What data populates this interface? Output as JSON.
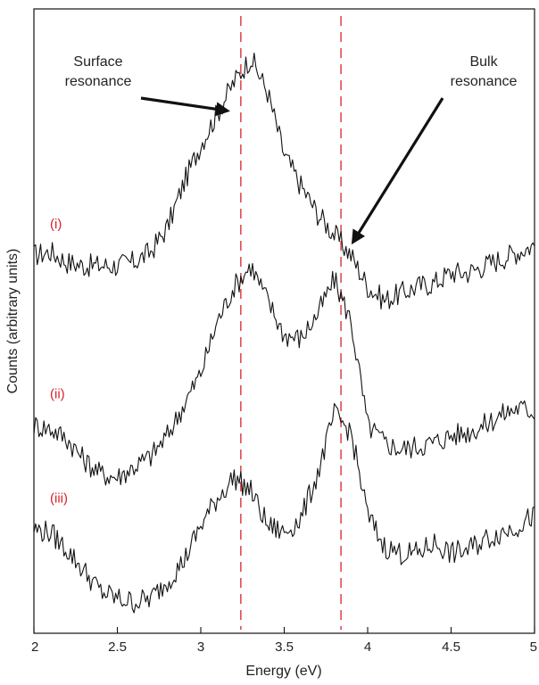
{
  "chart_data": {
    "type": "line",
    "title": "",
    "xlabel": "Energy (eV)",
    "ylabel": "Counts (arbitrary units)",
    "xlim": [
      2,
      5
    ],
    "x_ticks": [
      "2",
      "2.5",
      "3",
      "3.5",
      "4",
      "4.5",
      "5"
    ],
    "y_ticks_shown": false,
    "grid": false,
    "legend": "none",
    "line_color": "#111111",
    "marker_color": "#d6222a",
    "reference_lines": [
      {
        "x": 3.24,
        "style": "dashed",
        "color": "#d6222a"
      },
      {
        "x": 3.84,
        "style": "dashed",
        "color": "#d6222a"
      }
    ],
    "annotations": [
      {
        "lines": [
          "Surface",
          "resonance"
        ],
        "points_to_x": 3.17,
        "points_to": "trace (i)"
      },
      {
        "lines": [
          "Bulk",
          "resonance"
        ],
        "points_to_x": 3.88,
        "points_to": "trace (i)"
      }
    ],
    "series": [
      {
        "name": "(i)",
        "x": [
          2.0,
          2.1,
          2.2,
          2.3,
          2.4,
          2.5,
          2.6,
          2.7,
          2.8,
          2.9,
          3.0,
          3.1,
          3.2,
          3.3,
          3.4,
          3.5,
          3.6,
          3.7,
          3.8,
          3.9,
          4.0,
          4.1,
          4.2,
          4.3,
          4.4,
          4.5,
          4.6,
          4.7,
          4.8,
          4.9,
          5.0
        ],
        "values": [
          5.45,
          5.5,
          5.35,
          5.3,
          5.3,
          5.3,
          5.35,
          5.5,
          5.85,
          6.5,
          7.05,
          7.5,
          7.95,
          8.3,
          7.8,
          6.9,
          6.45,
          6.05,
          5.75,
          5.45,
          5.0,
          4.8,
          4.9,
          5.0,
          5.05,
          5.2,
          5.2,
          5.3,
          5.4,
          5.5,
          5.6
        ]
      },
      {
        "name": "(ii)",
        "x": [
          2.0,
          2.1,
          2.2,
          2.3,
          2.4,
          2.5,
          2.6,
          2.7,
          2.8,
          2.9,
          3.0,
          3.1,
          3.2,
          3.3,
          3.4,
          3.5,
          3.6,
          3.7,
          3.8,
          3.9,
          4.0,
          4.1,
          4.2,
          4.3,
          4.4,
          4.5,
          4.6,
          4.7,
          4.8,
          4.9,
          5.0
        ],
        "values": [
          3.0,
          2.95,
          2.8,
          2.5,
          2.3,
          2.25,
          2.4,
          2.55,
          2.85,
          3.3,
          3.75,
          4.5,
          5.0,
          5.3,
          4.8,
          4.3,
          4.25,
          4.6,
          5.1,
          4.5,
          3.0,
          2.75,
          2.65,
          2.7,
          2.75,
          2.85,
          2.9,
          3.0,
          3.15,
          3.25,
          3.2
        ]
      },
      {
        "name": "(iii)",
        "x": [
          2.0,
          2.1,
          2.2,
          2.3,
          2.4,
          2.5,
          2.6,
          2.7,
          2.8,
          2.9,
          3.0,
          3.1,
          3.2,
          3.3,
          3.4,
          3.5,
          3.6,
          3.7,
          3.8,
          3.9,
          4.0,
          4.1,
          4.2,
          4.3,
          4.4,
          4.5,
          4.6,
          4.7,
          4.8,
          4.9,
          5.0
        ],
        "values": [
          1.5,
          1.45,
          1.2,
          0.9,
          0.6,
          0.5,
          0.45,
          0.5,
          0.75,
          1.05,
          1.55,
          1.95,
          2.25,
          2.05,
          1.55,
          1.45,
          1.65,
          2.3,
          3.15,
          2.9,
          1.7,
          1.25,
          1.15,
          1.15,
          1.3,
          1.15,
          1.2,
          1.35,
          1.45,
          1.55,
          1.7
        ]
      }
    ]
  }
}
